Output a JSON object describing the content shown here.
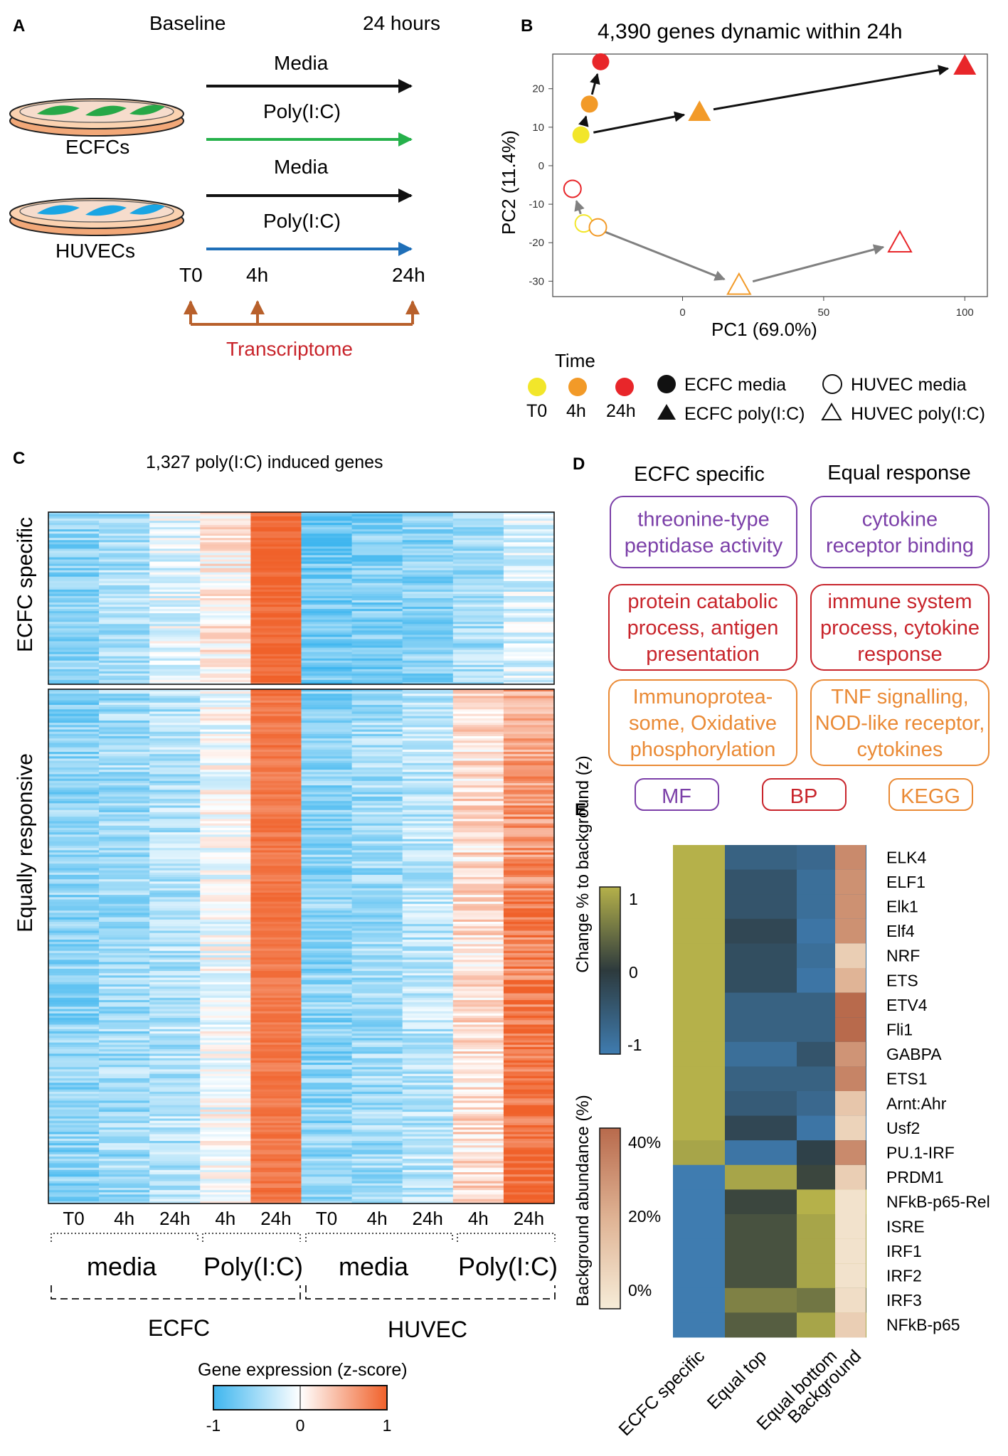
{
  "panels": {
    "a": {
      "letter": "A",
      "header_baseline": "Baseline",
      "header_24h": "24 hours",
      "ecfc_media": "Media",
      "ecfc_polyic": "Poly(I:C)",
      "ecfc_label": "ECFCs",
      "huvec_media": "Media",
      "huvec_polyic": "Poly(I:C)",
      "huvec_label": "HUVECs",
      "time_t0": "T0",
      "time_4h": "4h",
      "time_24h": "24h",
      "transcriptome": "Transcriptome"
    },
    "b": {
      "letter": "B",
      "title": "4,390 genes dynamic within 24h",
      "xlabel": "PC1 (69.0%)",
      "ylabel": "PC2 (11.4%)",
      "legend_time_title": "Time",
      "legend_t0": "T0",
      "legend_4h": "4h",
      "legend_24h": "24h",
      "legend_ecfc_media": "ECFC media",
      "legend_ecfc_poly": "ECFC poly(I:C)",
      "legend_huvec_media": "HUVEC media",
      "legend_huvec_poly": "HUVEC poly(I:C)"
    },
    "c": {
      "letter": "C",
      "title": "1,327 poly(I:C) induced genes",
      "row_ecfc_specific": "ECFC specific",
      "row_equal": "Equally responsive",
      "col_labels": [
        "T0",
        "4h",
        "24h",
        "4h",
        "24h",
        "T0",
        "4h",
        "24h",
        "4h",
        "24h"
      ],
      "group_media_1": "media",
      "group_poly_1": "Poly(I:C)",
      "group_media_2": "media",
      "group_poly_2": "Poly(I:C)",
      "group_ecfc": "ECFC",
      "group_huvec": "HUVEC",
      "colorbar_title": "Gene expression (z-score)",
      "colorbar_ticks": [
        "-1",
        "0",
        "1"
      ]
    },
    "d": {
      "letter": "D",
      "col_ecfc": "ECFC specific",
      "col_equal": "Equal response",
      "ecfc_mf": "threonine-type peptidase activity",
      "ecfc_bp": "protein catabolic process, antigen presentation",
      "ecfc_kegg": "Immunoprotea-some, Oxidative phosphorylation",
      "equal_mf": "cytokine receptor binding",
      "equal_bp": "immune system process, cytokine response",
      "equal_kegg": "TNF signalling, NOD-like receptor, cytokines",
      "legend_mf": "MF",
      "legend_bp": "BP",
      "legend_kegg": "KEGG"
    },
    "e": {
      "letter": "E",
      "cb1_title": "Change % to background (z)",
      "cb1_ticks": [
        "1",
        "0",
        "-1"
      ],
      "cb2_title": "Background abundance (%)",
      "cb2_ticks": [
        "40%",
        "20%",
        "0%"
      ],
      "col_labels": [
        "ECFC specific",
        "Equal top",
        "Equal bottom",
        "Background"
      ]
    }
  },
  "colors": {
    "purple": "#7b3fa8",
    "red": "#c8242b",
    "orange": "#ea8a35",
    "arrow_orange": "#b8602b",
    "yellow_t0": "#f2e62a",
    "orange_4h": "#f29a28",
    "red_24h": "#e8262a",
    "heat_low": "#3fb6ef",
    "heat_high": "#f0612a"
  },
  "chart_data": [
    {
      "type": "scatter",
      "title": "4,390 genes dynamic within 24h",
      "xlabel": "PC1 (69.0%)",
      "ylabel": "PC2 (11.4%)",
      "xlim": [
        -46,
        108
      ],
      "ylim": [
        -34,
        29
      ],
      "xticks": [
        0,
        50,
        100
      ],
      "yticks": [
        20,
        10,
        0,
        -10,
        -20,
        -30
      ],
      "series": [
        {
          "name": "ECFC media",
          "shape": "circle",
          "filled": true,
          "points": [
            {
              "time": "T0",
              "x": -36,
              "y": 8
            },
            {
              "time": "4h",
              "x": -33,
              "y": 16
            },
            {
              "time": "24h",
              "x": -29,
              "y": 27
            }
          ]
        },
        {
          "name": "ECFC poly(I:C)",
          "shape": "triangle",
          "filled": true,
          "points": [
            {
              "time": "4h",
              "x": 6,
              "y": 14
            },
            {
              "time": "24h",
              "x": 100,
              "y": 26
            }
          ]
        },
        {
          "name": "HUVEC media",
          "shape": "circle",
          "filled": false,
          "points": [
            {
              "time": "T0",
              "x": -35,
              "y": -15
            },
            {
              "time": "4h",
              "x": -30,
              "y": -16
            },
            {
              "time": "24h",
              "x": -39,
              "y": -6
            }
          ]
        },
        {
          "name": "HUVEC poly(I:C)",
          "shape": "triangle",
          "filled": false,
          "points": [
            {
              "time": "4h",
              "x": 20,
              "y": -31
            },
            {
              "time": "24h",
              "x": 77,
              "y": -20
            }
          ]
        }
      ]
    },
    {
      "type": "heatmap",
      "title": "1,327 poly(I:C) induced genes",
      "columns": [
        "ECFC media T0",
        "ECFC media 4h",
        "ECFC media 24h",
        "ECFC Poly(I:C) 4h",
        "ECFC Poly(I:C) 24h",
        "HUVEC media T0",
        "HUVEC media 4h",
        "HUVEC media 24h",
        "HUVEC Poly(I:C) 4h",
        "HUVEC Poly(I:C) 24h"
      ],
      "clusters": [
        {
          "name": "ECFC specific",
          "mean_z": [
            -0.6,
            -0.45,
            -0.15,
            0.1,
            0.95,
            -0.75,
            -0.65,
            -0.6,
            -0.45,
            -0.2
          ]
        },
        {
          "name": "Equally responsive",
          "mean_z": [
            -0.6,
            -0.5,
            -0.4,
            -0.05,
            0.85,
            -0.6,
            -0.5,
            -0.35,
            0.2,
            0.55
          ]
        }
      ],
      "zlim": [
        -1,
        1
      ]
    },
    {
      "type": "heatmap",
      "rows": [
        "ELK4",
        "ELF1",
        "Elk1",
        "Elf4",
        "NRF",
        "ETS",
        "ETV4",
        "Fli1",
        "GABPA",
        "ETS1",
        "Arnt:Ahr",
        "Usf2",
        "PU.1-IRF",
        "PRDM1",
        "NFkB-p65-Rel",
        "ISRE",
        "IRF1",
        "IRF2",
        "IRF3",
        "NFkB-p65"
      ],
      "columns": [
        "ECFC specific",
        "Equal top",
        "Equal bottom"
      ],
      "change_z": [
        [
          1.0,
          -0.6,
          -0.7
        ],
        [
          1.0,
          -0.4,
          -0.8
        ],
        [
          1.0,
          -0.4,
          -0.8
        ],
        [
          1.0,
          -0.2,
          -0.9
        ],
        [
          1.0,
          -0.3,
          -0.8
        ],
        [
          1.0,
          -0.3,
          -0.9
        ],
        [
          1.0,
          -0.6,
          -0.6
        ],
        [
          1.0,
          -0.6,
          -0.6
        ],
        [
          1.0,
          -0.8,
          -0.4
        ],
        [
          1.0,
          -0.6,
          -0.6
        ],
        [
          1.0,
          -0.5,
          -0.7
        ],
        [
          1.0,
          -0.2,
          -0.9
        ],
        [
          0.9,
          -0.9,
          -0.1
        ],
        [
          -1.0,
          0.9,
          0.1
        ],
        [
          -1.0,
          0.1,
          1.0
        ],
        [
          -1.0,
          0.2,
          0.9
        ],
        [
          -1.0,
          0.2,
          0.9
        ],
        [
          -1.0,
          0.2,
          0.9
        ],
        [
          -1.0,
          0.6,
          0.5
        ],
        [
          -1.0,
          0.3,
          0.9
        ]
      ],
      "zlim": [
        -1,
        1
      ],
      "background_abundance_pct": [
        35,
        33,
        33,
        33,
        12,
        22,
        45,
        45,
        32,
        37,
        15,
        10,
        35,
        12,
        4,
        4,
        4,
        4,
        6,
        12
      ],
      "background_lim": [
        0,
        45
      ]
    }
  ]
}
